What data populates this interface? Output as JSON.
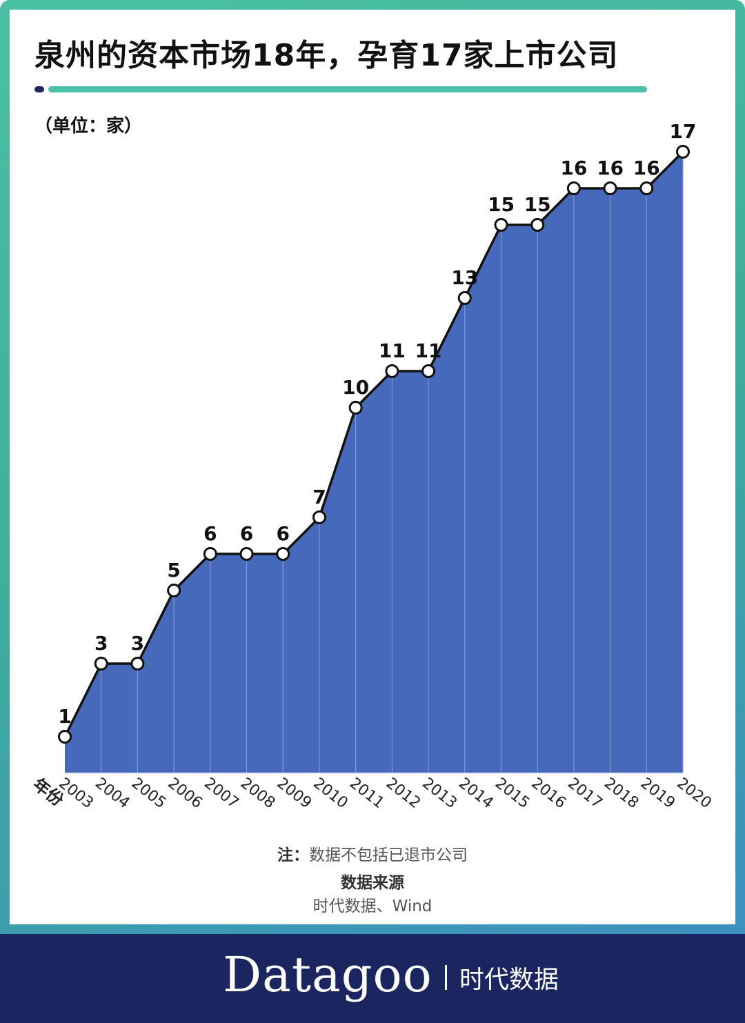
{
  "title": "泉州的资本市场18年，孕育17家上市公司",
  "unit_label": "（单位：家）",
  "chart_data": {
    "type": "area",
    "categories": [
      "2003",
      "2004",
      "2005",
      "2006",
      "2007",
      "2008",
      "2009",
      "2010",
      "2011",
      "2012",
      "2013",
      "2014",
      "2015",
      "2016",
      "2017",
      "2018",
      "2019",
      "2020"
    ],
    "values": [
      1,
      3,
      3,
      5,
      6,
      6,
      6,
      7,
      10,
      11,
      11,
      13,
      15,
      15,
      16,
      16,
      16,
      17
    ],
    "xlabel": "年份",
    "ylabel": "",
    "ylim": [
      0,
      17
    ],
    "grid": false,
    "legend": "none",
    "fill_color": "#4769bb",
    "line_color": "#111111",
    "marker_color": "#ffffff"
  },
  "note": {
    "label": "注：",
    "text": "数据不包括已退市公司"
  },
  "source": {
    "title": "数据来源",
    "text": "时代数据、Wind"
  },
  "footer": {
    "brand": "Datagoo",
    "brand_cn": "时代数据"
  },
  "colors": {
    "accent": "#4cc2a8",
    "footer_bg": "#1b2660",
    "dot": "#1c2a5e"
  }
}
